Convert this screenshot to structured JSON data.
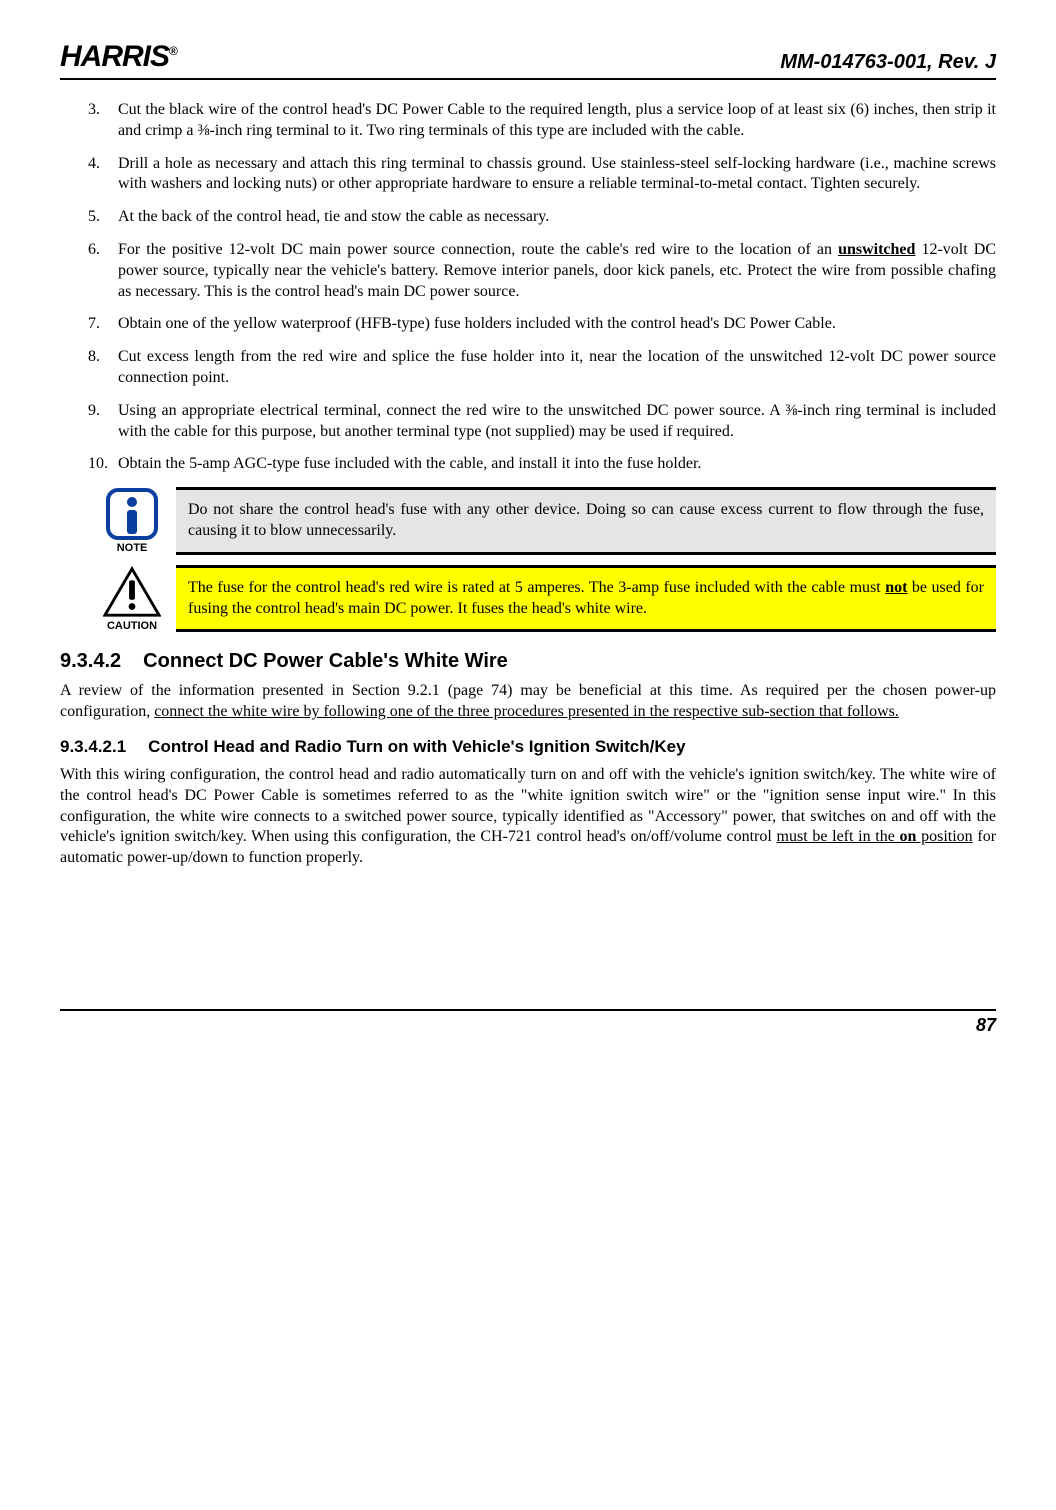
{
  "header": {
    "brand": "HARRIS",
    "reg": "®",
    "docid": "MM-014763-001, Rev. J"
  },
  "list": {
    "items": [
      {
        "n": "3.",
        "html": "Cut the black wire of the control head's DC Power Cable to the required length, plus a service loop of at least six (6) inches, then strip it and crimp a ⅜-inch ring terminal to it. Two ring terminals of this type are included with the cable."
      },
      {
        "n": "4.",
        "html": "Drill a hole as necessary and attach this ring terminal to chassis ground. Use stainless-steel self-locking hardware (i.e., machine screws with washers and locking nuts) or other appropriate hardware to ensure a reliable terminal-to-metal contact. Tighten securely."
      },
      {
        "n": "5.",
        "html": "At the back of the control head, tie and stow the cable as necessary."
      },
      {
        "n": "6.",
        "html": "For the positive 12-volt DC main power source connection, route the cable's red wire to the location of an <b class=\"under\">unswitched</b> 12-volt DC power source, typically near the vehicle's battery. Remove interior panels, door kick panels, etc. Protect the wire from possible chafing as necessary. This is the control head's main DC power source."
      },
      {
        "n": "7.",
        "html": "Obtain one of the yellow waterproof (HFB-type) fuse holders included with the control head's DC Power Cable."
      },
      {
        "n": "8.",
        "html": "Cut excess length from the red wire and splice the fuse holder into it, near the location of the unswitched 12-volt DC power source connection point."
      },
      {
        "n": "9.",
        "html": "Using an appropriate electrical terminal, connect the red wire to the unswitched DC power source. A ⅜-inch ring terminal is included with the cable for this purpose, but another terminal type (not supplied) may be used if required."
      },
      {
        "n": "10.",
        "html": "Obtain the 5-amp AGC-type fuse included with the cable, and install it into the fuse holder."
      }
    ]
  },
  "note": {
    "label": "NOTE",
    "text": "Do not share the control head's fuse with any other device. Doing so can cause excess current to flow through the fuse, causing it to blow unnecessarily.",
    "icon_colors": {
      "circle": "#0a3ea0",
      "fill": "#ffffff",
      "i": "#0a3ea0"
    }
  },
  "caution": {
    "label": "CAUTION",
    "html": "The fuse for the control head's red wire is rated at 5 amperes. The 3-amp fuse included with the cable must <b class=\"under\">not</b> be used for fusing the control head's main DC power. It fuses the head's white wire.",
    "icon_colors": {
      "border": "#000000",
      "fill": "#ffffff",
      "bang": "#000000"
    }
  },
  "sections": {
    "s1": {
      "num": "9.3.4.2",
      "title": "Connect DC Power Cable's White Wire"
    },
    "s1_body": "A review of the information presented in Section 9.2.1 (page 74) may be beneficial at this time. As required per the chosen power-up configuration, <span class=\"under\">connect the white wire by following one of the three procedures presented in the respective sub-section that follows.</span>",
    "s2": {
      "num": "9.3.4.2.1",
      "title": "Control Head and Radio Turn on with Vehicle's Ignition Switch/Key"
    },
    "s2_body": "With this wiring configuration, the control head and radio automatically turn on and off with the vehicle's ignition switch/key. The white wire of the control head's DC Power Cable is sometimes referred to as the \"white ignition switch wire\" or the \"ignition sense input wire.\" In this configuration, the white wire connects to a switched power source, typically identified as \"Accessory\" power, that switches on and off with the vehicle's ignition switch/key. When using this configuration, the CH-721 control head's on/off/volume control <span class=\"under\">must be left in the <b>on</b> position</span> for automatic power-up/down to function properly."
  },
  "footer": {
    "page": "87"
  }
}
